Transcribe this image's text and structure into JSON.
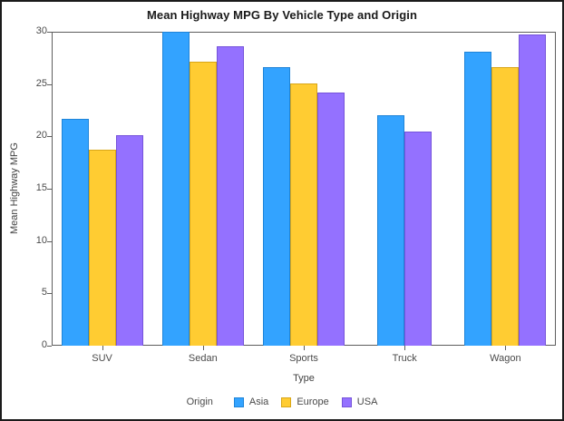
{
  "chart_data": {
    "type": "bar",
    "title": "Mean Highway MPG By Vehicle Type and Origin",
    "xlabel": "Type",
    "ylabel": "Mean Highway MPG",
    "legend_title": "Origin",
    "legend_position": "bottom",
    "grid": false,
    "categories": [
      "SUV",
      "Sedan",
      "Sports",
      "Truck",
      "Wagon"
    ],
    "series": [
      {
        "name": "Asia",
        "color": "#33A3FF",
        "border_color": "#1f84d8",
        "values": [
          21.7,
          30.0,
          26.6,
          22.0,
          28.1
        ]
      },
      {
        "name": "Europe",
        "color": "#FFCC32",
        "border_color": "#d9a617",
        "values": [
          18.7,
          27.1,
          25.1,
          null,
          26.6
        ]
      },
      {
        "name": "USA",
        "color": "#9471FF",
        "border_color": "#7553da",
        "values": [
          20.1,
          28.6,
          24.2,
          20.5,
          29.7
        ]
      }
    ],
    "ylim": [
      0,
      30
    ],
    "yticks": [
      0,
      5,
      10,
      15,
      20,
      25,
      30
    ],
    "missing_note": "Truck has no Europe bar",
    "colors": {
      "title_text": "#1a1a1a",
      "axis_text": "#4a4a4a",
      "frame": "#5e5e5e",
      "background": "#ffffff",
      "outer_border": "#1b1b1b"
    }
  }
}
